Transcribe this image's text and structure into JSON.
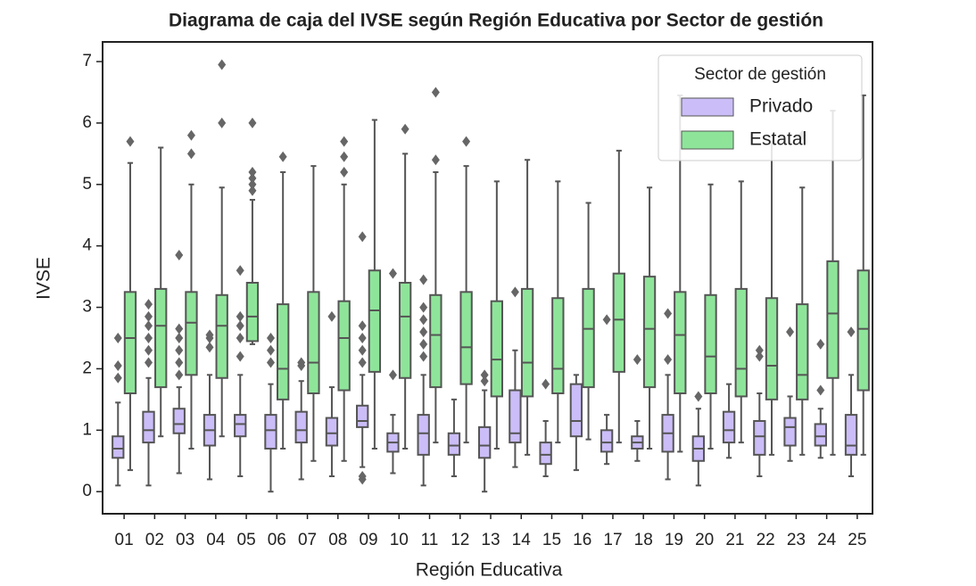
{
  "chart_data": {
    "type": "box",
    "title": "Diagrama de caja del IVSE según Región Educativa por Sector de gestión",
    "xlabel": "Región Educativa",
    "ylabel": "IVSE",
    "categories": [
      "01",
      "02",
      "03",
      "04",
      "05",
      "06",
      "07",
      "08",
      "09",
      "10",
      "11",
      "12",
      "13",
      "14",
      "15",
      "16",
      "17",
      "18",
      "19",
      "20",
      "21",
      "22",
      "23",
      "24",
      "25"
    ],
    "ylim": [
      -0.36,
      7.32
    ],
    "yticks": [
      0,
      1,
      2,
      3,
      4,
      5,
      6,
      7
    ],
    "legend_title": "Sector de gestión",
    "legend_loc": "upper right",
    "series": [
      {
        "name": "Privado",
        "color": "#cbbdf7",
        "boxes": [
          {
            "whislo": 0.1,
            "q1": 0.55,
            "med": 0.7,
            "q3": 0.9,
            "whishi": 1.45,
            "fliers": [
              1.85,
              2.05,
              2.5
            ]
          },
          {
            "whislo": 0.1,
            "q1": 0.8,
            "med": 1.0,
            "q3": 1.3,
            "whishi": 1.85,
            "fliers": [
              2.1,
              2.3,
              2.5,
              2.7,
              2.85,
              3.05
            ]
          },
          {
            "whislo": 0.3,
            "q1": 0.95,
            "med": 1.1,
            "q3": 1.35,
            "whishi": 1.7,
            "fliers": [
              1.9,
              2.1,
              2.3,
              2.5,
              2.65,
              3.85
            ]
          },
          {
            "whislo": 0.2,
            "q1": 0.75,
            "med": 1.0,
            "q3": 1.25,
            "whishi": 1.9,
            "fliers": [
              2.35,
              2.5,
              2.55
            ]
          },
          {
            "whislo": 0.25,
            "q1": 0.9,
            "med": 1.1,
            "q3": 1.25,
            "whishi": 1.9,
            "fliers": [
              2.2,
              2.5,
              2.7,
              2.85,
              3.6
            ]
          },
          {
            "whislo": 0.0,
            "q1": 0.7,
            "med": 1.0,
            "q3": 1.25,
            "whishi": 1.75,
            "fliers": [
              2.1,
              2.3,
              2.5
            ]
          },
          {
            "whislo": 0.2,
            "q1": 0.8,
            "med": 1.0,
            "q3": 1.3,
            "whishi": 1.8,
            "fliers": [
              2.05,
              2.1
            ]
          },
          {
            "whislo": 0.25,
            "q1": 0.75,
            "med": 0.95,
            "q3": 1.2,
            "whishi": 1.7,
            "fliers": [
              2.85
            ]
          },
          {
            "whislo": 0.4,
            "q1": 1.05,
            "med": 1.15,
            "q3": 1.4,
            "whishi": 1.9,
            "fliers": [
              0.2,
              0.25,
              2.1,
              2.3,
              2.5,
              2.7,
              4.15
            ]
          },
          {
            "whislo": 0.3,
            "q1": 0.65,
            "med": 0.8,
            "q3": 0.95,
            "whishi": 1.25,
            "fliers": [
              1.9,
              3.55
            ]
          },
          {
            "whislo": 0.1,
            "q1": 0.6,
            "med": 0.95,
            "q3": 1.25,
            "whishi": 1.9,
            "fliers": [
              2.2,
              2.4,
              2.6,
              2.8,
              3.0,
              3.45
            ]
          },
          {
            "whislo": 0.25,
            "q1": 0.6,
            "med": 0.75,
            "q3": 0.95,
            "whishi": 1.5,
            "fliers": []
          },
          {
            "whislo": 0.0,
            "q1": 0.55,
            "med": 0.75,
            "q3": 1.05,
            "whishi": 1.65,
            "fliers": [
              1.8,
              1.9
            ]
          },
          {
            "whislo": 0.4,
            "q1": 0.8,
            "med": 0.95,
            "q3": 1.65,
            "whishi": 2.3,
            "fliers": [
              3.25
            ]
          },
          {
            "whislo": 0.25,
            "q1": 0.45,
            "med": 0.6,
            "q3": 0.8,
            "whishi": 1.15,
            "fliers": [
              1.75
            ]
          },
          {
            "whislo": 0.35,
            "q1": 0.9,
            "med": 1.15,
            "q3": 1.75,
            "whishi": 1.9,
            "fliers": []
          },
          {
            "whislo": 0.45,
            "q1": 0.65,
            "med": 0.8,
            "q3": 1.0,
            "whishi": 1.25,
            "fliers": [
              2.8
            ]
          },
          {
            "whislo": 0.5,
            "q1": 0.7,
            "med": 0.8,
            "q3": 0.9,
            "whishi": 1.15,
            "fliers": [
              2.15
            ]
          },
          {
            "whislo": 0.2,
            "q1": 0.65,
            "med": 0.95,
            "q3": 1.25,
            "whishi": 1.9,
            "fliers": [
              2.15,
              2.9
            ]
          },
          {
            "whislo": 0.1,
            "q1": 0.5,
            "med": 0.7,
            "q3": 0.9,
            "whishi": 1.35,
            "fliers": [
              1.55
            ]
          },
          {
            "whislo": 0.55,
            "q1": 0.8,
            "med": 1.0,
            "q3": 1.3,
            "whishi": 1.75,
            "fliers": []
          },
          {
            "whislo": 0.25,
            "q1": 0.6,
            "med": 0.9,
            "q3": 1.15,
            "whishi": 1.6,
            "fliers": [
              2.2,
              2.3
            ]
          },
          {
            "whislo": 0.5,
            "q1": 0.75,
            "med": 1.05,
            "q3": 1.2,
            "whishi": 1.55,
            "fliers": [
              2.6
            ]
          },
          {
            "whislo": 0.55,
            "q1": 0.75,
            "med": 0.9,
            "q3": 1.1,
            "whishi": 1.35,
            "fliers": [
              1.65,
              2.4
            ]
          },
          {
            "whislo": 0.25,
            "q1": 0.6,
            "med": 0.75,
            "q3": 1.25,
            "whishi": 1.9,
            "fliers": [
              2.6
            ]
          }
        ]
      },
      {
        "name": "Estatal",
        "color": "#8ee59a",
        "boxes": [
          {
            "whislo": 0.35,
            "q1": 1.6,
            "med": 2.5,
            "q3": 3.25,
            "whishi": 5.35,
            "fliers": [
              5.7
            ]
          },
          {
            "whislo": 0.9,
            "q1": 1.7,
            "med": 2.7,
            "q3": 3.3,
            "whishi": 5.6,
            "fliers": []
          },
          {
            "whislo": 0.7,
            "q1": 1.9,
            "med": 2.75,
            "q3": 3.25,
            "whishi": 5.0,
            "fliers": [
              5.5,
              5.8
            ]
          },
          {
            "whislo": 0.9,
            "q1": 1.85,
            "med": 2.7,
            "q3": 3.2,
            "whishi": 4.95,
            "fliers": [
              6.0,
              6.95
            ]
          },
          {
            "whislo": 2.4,
            "q1": 2.45,
            "med": 2.85,
            "q3": 3.4,
            "whishi": 4.75,
            "fliers": [
              4.9,
              5.0,
              5.1,
              5.2,
              6.0
            ]
          },
          {
            "whislo": 0.7,
            "q1": 1.5,
            "med": 2.0,
            "q3": 3.05,
            "whishi": 5.2,
            "fliers": [
              5.45
            ]
          },
          {
            "whislo": 0.5,
            "q1": 1.6,
            "med": 2.1,
            "q3": 3.25,
            "whishi": 5.3,
            "fliers": []
          },
          {
            "whislo": 0.5,
            "q1": 1.65,
            "med": 2.5,
            "q3": 3.1,
            "whishi": 5.0,
            "fliers": [
              5.2,
              5.45,
              5.7
            ]
          },
          {
            "whislo": 0.7,
            "q1": 1.95,
            "med": 2.95,
            "q3": 3.6,
            "whishi": 6.05,
            "fliers": []
          },
          {
            "whislo": 0.7,
            "q1": 1.85,
            "med": 2.85,
            "q3": 3.4,
            "whishi": 5.5,
            "fliers": [
              5.9
            ]
          },
          {
            "whislo": 0.8,
            "q1": 1.7,
            "med": 2.55,
            "q3": 3.2,
            "whishi": 5.2,
            "fliers": [
              5.4,
              6.5
            ]
          },
          {
            "whislo": 0.8,
            "q1": 1.75,
            "med": 2.35,
            "q3": 3.25,
            "whishi": 5.3,
            "fliers": [
              5.7
            ]
          },
          {
            "whislo": 0.7,
            "q1": 1.55,
            "med": 2.15,
            "q3": 3.1,
            "whishi": 5.05,
            "fliers": []
          },
          {
            "whislo": 0.6,
            "q1": 1.55,
            "med": 2.1,
            "q3": 3.3,
            "whishi": 5.4,
            "fliers": []
          },
          {
            "whislo": 0.8,
            "q1": 1.6,
            "med": 2.0,
            "q3": 3.15,
            "whishi": 5.05,
            "fliers": []
          },
          {
            "whislo": 0.85,
            "q1": 1.7,
            "med": 2.65,
            "q3": 3.3,
            "whishi": 4.7,
            "fliers": []
          },
          {
            "whislo": 0.8,
            "q1": 1.95,
            "med": 2.8,
            "q3": 3.55,
            "whishi": 5.55,
            "fliers": []
          },
          {
            "whislo": 0.7,
            "q1": 1.7,
            "med": 2.65,
            "q3": 3.5,
            "whishi": 4.95,
            "fliers": []
          },
          {
            "whislo": 0.65,
            "q1": 1.6,
            "med": 2.55,
            "q3": 3.25,
            "whishi": 6.45,
            "fliers": []
          },
          {
            "whislo": 0.7,
            "q1": 1.6,
            "med": 2.2,
            "q3": 3.2,
            "whishi": 5.0,
            "fliers": []
          },
          {
            "whislo": 0.8,
            "q1": 1.55,
            "med": 2.0,
            "q3": 3.3,
            "whishi": 5.05,
            "fliers": []
          },
          {
            "whislo": 0.6,
            "q1": 1.5,
            "med": 2.05,
            "q3": 3.15,
            "whishi": 5.7,
            "fliers": []
          },
          {
            "whislo": 0.6,
            "q1": 1.5,
            "med": 1.9,
            "q3": 3.05,
            "whishi": 4.95,
            "fliers": [
              5.8
            ]
          },
          {
            "whislo": 0.6,
            "q1": 1.85,
            "med": 2.9,
            "q3": 3.75,
            "whishi": 6.2,
            "fliers": []
          },
          {
            "whislo": 0.6,
            "q1": 1.65,
            "med": 2.65,
            "q3": 3.6,
            "whishi": 6.45,
            "fliers": []
          }
        ]
      }
    ]
  }
}
